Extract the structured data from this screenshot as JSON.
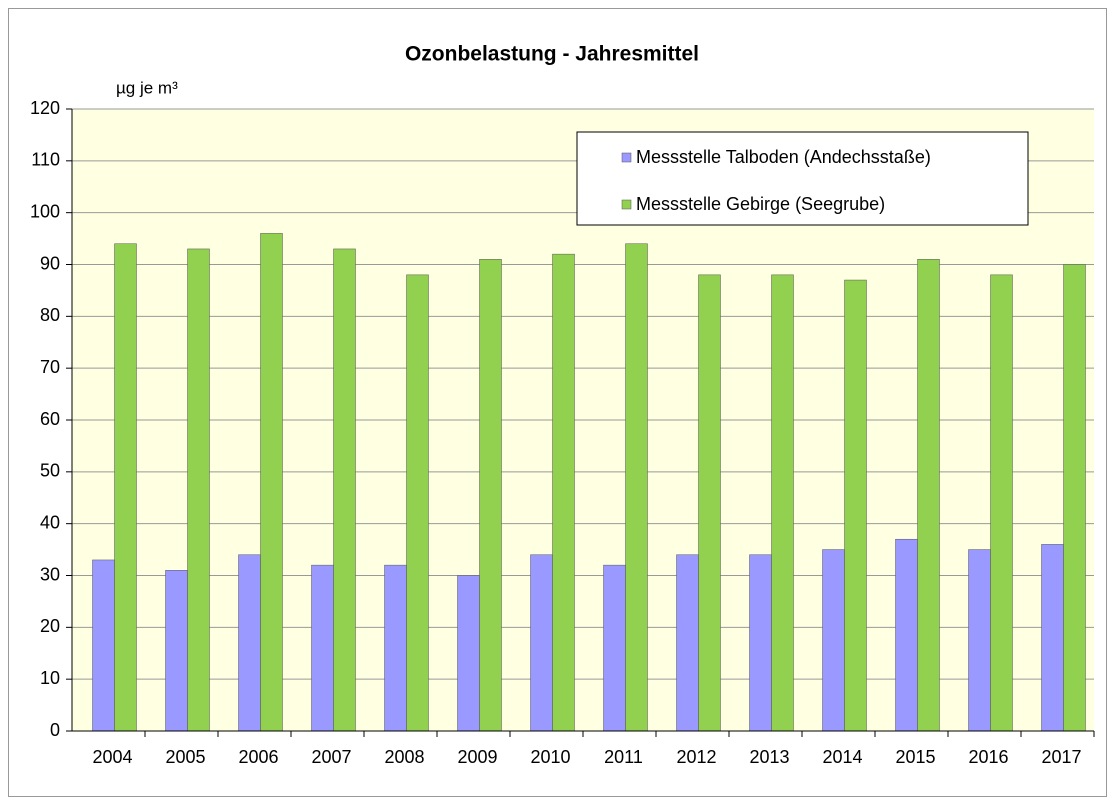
{
  "chart_data": {
    "type": "bar",
    "title": "Ozonbelastung - Jahresmittel",
    "y_label": "µg je m³",
    "categories": [
      "2004",
      "2005",
      "2006",
      "2007",
      "2008",
      "2009",
      "2010",
      "2011",
      "2012",
      "2013",
      "2014",
      "2015",
      "2016",
      "2017"
    ],
    "series": [
      {
        "name": "Messstelle Talboden (Andechsstaße)",
        "color": "#9999ff",
        "values": [
          33,
          31,
          34,
          32,
          32,
          30,
          34,
          32,
          34,
          34,
          35,
          37,
          35,
          36
        ]
      },
      {
        "name": "Messstelle Gebirge (Seegrube)",
        "color": "#92d050",
        "values": [
          94,
          93,
          96,
          93,
          88,
          91,
          92,
          94,
          88,
          88,
          87,
          91,
          88,
          90
        ]
      }
    ],
    "ylim": [
      0,
      120
    ],
    "yticks": [
      0,
      10,
      20,
      30,
      40,
      50,
      60,
      70,
      80,
      90,
      100,
      110,
      120
    ],
    "grid": true,
    "legend": "upper right",
    "background": "#ffffe1"
  }
}
